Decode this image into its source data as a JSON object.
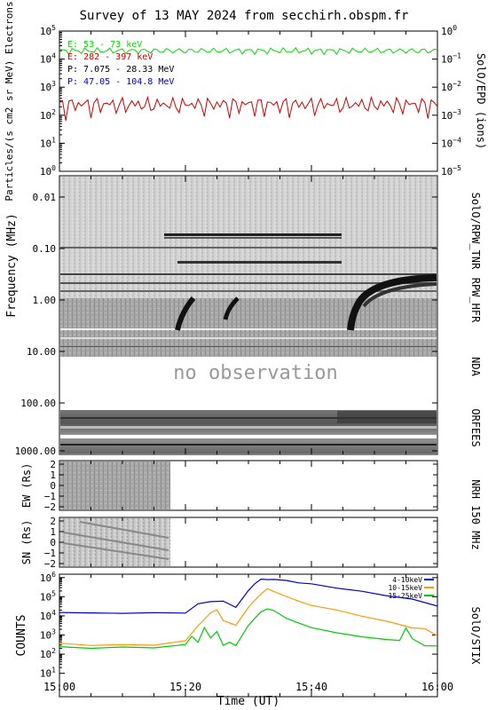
{
  "title": "Survey of 13 MAY 2024 from secchirh.obspm.fr",
  "chart_data": [
    {
      "type": "line",
      "panel": "SolO/EPD",
      "ylabel": "Particles/(s cm2 sr MeV) Electrons",
      "y2label": "SolO/EPD (ions)",
      "yscale": "log",
      "ylim": [
        1,
        100000
      ],
      "y2lim": [
        1e-05,
        1
      ],
      "yticks": [
        "10^0",
        "10^1",
        "10^2",
        "10^3",
        "10^4",
        "10^5"
      ],
      "y2ticks": [
        "10^-5",
        "10^-4",
        "10^-3",
        "10^-2",
        "10^-1",
        "10^0"
      ],
      "legend": [
        {
          "text": "E: 53 - 73 keV",
          "color": "#00dd00"
        },
        {
          "text": "E: 282 - 397 keV",
          "color": "#cc0000"
        },
        {
          "text": "P: 7.075 - 28.33 MeV",
          "color": "#000000"
        },
        {
          "text": "P: 47.05 - 104.8 MeV",
          "color": "#0000cc"
        }
      ],
      "series": [
        {
          "name": "E: 53 - 73 keV",
          "color": "#00dd00",
          "level": 20000
        },
        {
          "name": "E: 282 - 397 keV",
          "color": "#cc0000",
          "level": 250
        }
      ]
    },
    {
      "type": "heatmap",
      "panel": "SolO/RPW_TNR",
      "ylabel": "Frequency (MHz)",
      "yticks": [
        "0.01",
        "0.10",
        "1.00"
      ]
    },
    {
      "type": "heatmap",
      "panel": "RPW_HFR",
      "yticks": [
        "10.00"
      ]
    },
    {
      "type": "heatmap",
      "panel": "NDA",
      "note": "no observation",
      "yticks": [
        "100.00"
      ]
    },
    {
      "type": "heatmap",
      "panel": "ORFEES",
      "yticks": [
        "1000.00"
      ]
    },
    {
      "type": "heatmap",
      "panel": "NRH 150 MHz",
      "subpanels": [
        {
          "ylabel": "EW (Rs)",
          "yticks": [
            "2",
            "1",
            "0",
            "−1",
            "−2"
          ]
        },
        {
          "ylabel": "SN (Rs)",
          "yticks": [
            "2",
            "1",
            "0",
            "−1",
            "−2"
          ]
        }
      ],
      "data_end": "15:17"
    },
    {
      "type": "line",
      "panel": "SolO/STIX",
      "ylabel": "COUNTS",
      "yscale": "log",
      "ylim": [
        1,
        1000000
      ],
      "yticks": [
        "10^1",
        "10^2",
        "10^3",
        "10^4",
        "10^5",
        "10^6"
      ],
      "xlabel": "Time (UT)",
      "xticks": [
        "15:00",
        "15:20",
        "15:40",
        "16:00"
      ],
      "series": [
        {
          "name": "4-10keV",
          "color": "#0000cc",
          "x": [
            0,
            5,
            10,
            15,
            20,
            22,
            24,
            26,
            28,
            30,
            31,
            32,
            33,
            34,
            36,
            38,
            40,
            44,
            48,
            52,
            56,
            60
          ],
          "y": [
            15000,
            14000,
            14000,
            14000,
            15000,
            40000,
            60000,
            55000,
            30000,
            200000,
            500000,
            800000,
            800000,
            800000,
            700000,
            550000,
            450000,
            300000,
            180000,
            120000,
            70000,
            35000
          ]
        },
        {
          "name": "10-15keV",
          "color": "#ff9900",
          "x": [
            0,
            5,
            10,
            15,
            20,
            22,
            24,
            25,
            26,
            28,
            30,
            31,
            32,
            33,
            34,
            36,
            38,
            40,
            44,
            48,
            52,
            56,
            58,
            60
          ],
          "y": [
            350,
            300,
            300,
            300,
            500,
            3000,
            15000,
            20000,
            6000,
            3000,
            30000,
            60000,
            150000,
            250000,
            200000,
            100000,
            60000,
            35000,
            20000,
            10000,
            5000,
            2500,
            2000,
            1000
          ]
        },
        {
          "name": "15-25keV",
          "color": "#00cc00",
          "x": [
            0,
            5,
            10,
            15,
            20,
            21,
            22,
            23,
            24,
            25,
            26,
            27,
            28,
            30,
            31,
            32,
            33,
            34,
            36,
            38,
            40,
            44,
            48,
            52,
            54,
            55,
            56,
            58,
            60
          ],
          "y": [
            230,
            220,
            220,
            230,
            300,
            900,
            400,
            2500,
            700,
            1500,
            300,
            400,
            300,
            3000,
            8000,
            15000,
            25000,
            18000,
            8000,
            4000,
            2500,
            1300,
            800,
            600,
            500,
            2500,
            600,
            300,
            250
          ]
        }
      ]
    }
  ]
}
